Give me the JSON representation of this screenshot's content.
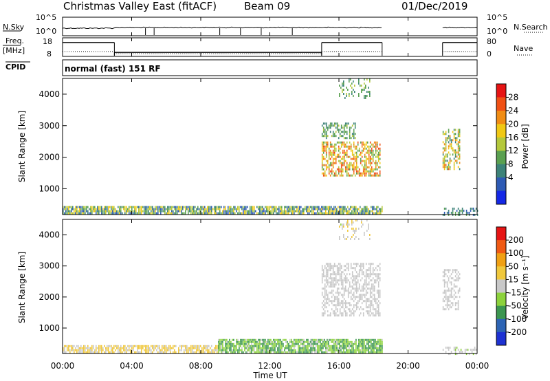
{
  "header": {
    "title": "Christmas Valley East (fitACF)",
    "beam": "Beam 09",
    "date": "01/Dec/2019"
  },
  "time_axis": {
    "label": "Time UT",
    "ticks": [
      "00:00",
      "04:00",
      "08:00",
      "12:00",
      "16:00",
      "20:00",
      "00:00"
    ],
    "range_hours": [
      0,
      24
    ]
  },
  "panels": {
    "nsky": {
      "left_label": "N.Sky",
      "left_ticks": [
        "10^5",
        "10^0"
      ],
      "right_label": "N.Search",
      "right_ticks": [
        "10^5",
        "10^0"
      ]
    },
    "freq": {
      "left_label": "Freq.",
      "left_unit": "[MHz]",
      "left_ticks": [
        "18",
        "8"
      ],
      "right_label": "Nave",
      "right_ticks": [
        "80",
        "0"
      ]
    },
    "cpid": {
      "label": "CPID",
      "mode_text": "normal (fast) 151 RF"
    },
    "power": {
      "ylabel": "Slant Range [km]",
      "yticks": [
        "4000",
        "3000",
        "2000",
        "1000"
      ],
      "cbar_label": "Power [dB]",
      "cbar_ticks": [
        "28",
        "24",
        "20",
        "16",
        "12",
        "8",
        "4"
      ]
    },
    "velocity": {
      "ylabel": "Slant Range [km]",
      "yticks": [
        "4000",
        "3000",
        "2000",
        "1000"
      ],
      "cbar_label": "Velocity [m s⁻¹]",
      "cbar_ticks": [
        "200",
        "100",
        "50",
        "15",
        "-15",
        "-50",
        "-100",
        "-200"
      ]
    }
  },
  "colors": {
    "power_scale": [
      "#1428e6",
      "#2d5ab4",
      "#3c8278",
      "#5aa050",
      "#b4c83c",
      "#f0c814",
      "#f08c14",
      "#f05014",
      "#e61414"
    ],
    "velocity_scale": [
      "#e61414",
      "#f05a14",
      "#f0a014",
      "#f0c83c",
      "#c8c8c8",
      "#8cd23c",
      "#3c9650",
      "#2d64b4",
      "#1e32d2"
    ]
  },
  "chart_data": [
    {
      "type": "line",
      "name": "sky_noise_and_search_noise",
      "x_range": [
        0,
        24
      ],
      "series": [
        {
          "x": [
            0.0,
            3.0,
            3.01,
            4.8,
            4.81,
            18.5
          ],
          "y_level": "low_steady"
        },
        {
          "x": [
            22.0,
            24.0
          ],
          "y_level": "low_steady"
        }
      ],
      "dropouts_hours": [
        4.8,
        5.3,
        9.1,
        10.3,
        11.5,
        13.3
      ]
    },
    {
      "type": "line",
      "name": "transmit_frequency",
      "ylabel": "Freq. [MHz]",
      "ylim": [
        8,
        18
      ],
      "series": [
        {
          "x": [
            0.0,
            3.0
          ],
          "y": [
            16,
            16
          ]
        },
        {
          "x": [
            3.0,
            15.0
          ],
          "y": [
            10,
            10
          ]
        },
        {
          "x": [
            15.0,
            18.5
          ],
          "y": [
            16,
            16
          ]
        },
        {
          "x": [
            22.0,
            24.0
          ],
          "y": [
            16,
            16
          ]
        }
      ],
      "nave_approx": [
        {
          "x": [
            0.0,
            3.0
          ],
          "y": 20
        },
        {
          "x": [
            3.0,
            15.0
          ],
          "y": 10
        },
        {
          "x": [
            15.0,
            18.5
          ],
          "y": 20
        },
        {
          "x": [
            22.0,
            24.0
          ],
          "y": 20
        }
      ]
    },
    {
      "type": "heatmap",
      "name": "power",
      "x_unit": "hours UT",
      "x_range": [
        0,
        24
      ],
      "y_unit": "km",
      "y_range": [
        180,
        4500
      ],
      "z_unit": "dB",
      "z_range": [
        0,
        30
      ],
      "regions": [
        {
          "t": [
            0.0,
            18.5
          ],
          "r": [
            200,
            450
          ],
          "z": [
            4,
            20
          ],
          "density": 0.85
        },
        {
          "t": [
            15.0,
            18.4
          ],
          "r": [
            1400,
            2500
          ],
          "z": [
            10,
            26
          ],
          "density": 0.6
        },
        {
          "t": [
            15.0,
            17.0
          ],
          "r": [
            2600,
            3100
          ],
          "z": [
            8,
            14
          ],
          "density": 0.5
        },
        {
          "t": [
            16.0,
            17.8
          ],
          "r": [
            3900,
            4500
          ],
          "z": [
            8,
            14
          ],
          "density": 0.25
        },
        {
          "t": [
            22.0,
            23.0
          ],
          "r": [
            1600,
            2900
          ],
          "z": [
            8,
            24
          ],
          "density": 0.5
        },
        {
          "t": [
            22.0,
            24.0
          ],
          "r": [
            200,
            400
          ],
          "z": [
            4,
            12
          ],
          "density": 0.4
        }
      ]
    },
    {
      "type": "heatmap",
      "name": "velocity",
      "x_unit": "hours UT",
      "x_range": [
        0,
        24
      ],
      "y_unit": "km",
      "y_range": [
        180,
        4500
      ],
      "z_unit": "m/s",
      "z_range": [
        -250,
        250
      ],
      "regions": [
        {
          "t": [
            0.0,
            9.0
          ],
          "r": [
            200,
            450
          ],
          "z": [
            0,
            80
          ],
          "density": 0.75
        },
        {
          "t": [
            9.0,
            18.5
          ],
          "r": [
            200,
            650
          ],
          "z": [
            -120,
            -20
          ],
          "density": 0.85
        },
        {
          "t": [
            15.0,
            18.4
          ],
          "r": [
            1400,
            3100
          ],
          "z": [
            -15,
            15
          ],
          "density": 0.55
        },
        {
          "t": [
            16.0,
            17.8
          ],
          "r": [
            3900,
            4500
          ],
          "z": [
            -30,
            60
          ],
          "density": 0.2
        },
        {
          "t": [
            22.0,
            23.0
          ],
          "r": [
            1600,
            2900
          ],
          "z": [
            -15,
            15
          ],
          "density": 0.5
        },
        {
          "t": [
            22.0,
            24.0
          ],
          "r": [
            200,
            400
          ],
          "z": [
            -40,
            20
          ],
          "density": 0.35
        }
      ]
    }
  ]
}
